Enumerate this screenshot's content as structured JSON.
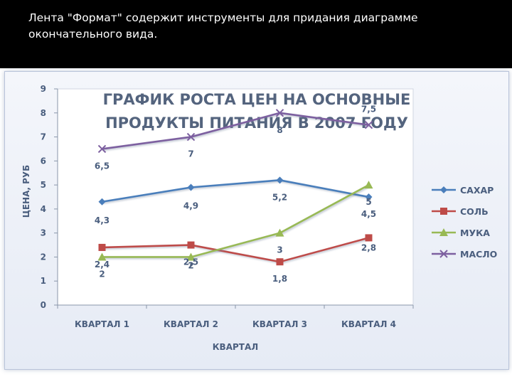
{
  "slide": {
    "caption": "Лента \"Формат\" содержит инструменты для придания диаграмме окончательного вида."
  },
  "chart_data": {
    "type": "line",
    "title_lines": [
      "ГРАФИК РОСТА ЦЕН НА ОСНОВНЫЕ",
      "ПРОДУКТЫ ПИТАНИЯ В 2007 ГОДУ"
    ],
    "xlabel": "КВАРТАЛ",
    "ylabel": "ЦЕНА, РУБ",
    "categories": [
      "КВАРТАЛ 1",
      "КВАРТАЛ 2",
      "КВАРТАЛ 3",
      "КВАРТАЛ 4"
    ],
    "ylim": [
      0,
      9
    ],
    "yticks": [
      0,
      1,
      2,
      3,
      4,
      5,
      6,
      7,
      8,
      9
    ],
    "legend_position": "right",
    "grid": false,
    "series": [
      {
        "name": "САХАР",
        "values": [
          4.3,
          4.9,
          5.2,
          4.5
        ],
        "labels": [
          "4,3",
          "4,9",
          "5,2",
          "4,5"
        ],
        "color": "#4a7ebb",
        "marker": "diamond"
      },
      {
        "name": "СОЛЬ",
        "values": [
          2.4,
          2.5,
          1.8,
          2.8
        ],
        "labels": [
          "2,4",
          "2,5",
          "1,8",
          "2,8"
        ],
        "color": "#be4b48",
        "marker": "square"
      },
      {
        "name": "МУКА",
        "values": [
          2,
          2,
          3,
          5
        ],
        "labels": [
          "2",
          "2",
          "3",
          "5"
        ],
        "color": "#98b954",
        "marker": "triangle"
      },
      {
        "name": "МАСЛО",
        "values": [
          6.5,
          7,
          8,
          7.5
        ],
        "labels": [
          "6,5",
          "7",
          "8",
          "7,5"
        ],
        "color": "#7d60a0",
        "marker": "x"
      }
    ]
  }
}
